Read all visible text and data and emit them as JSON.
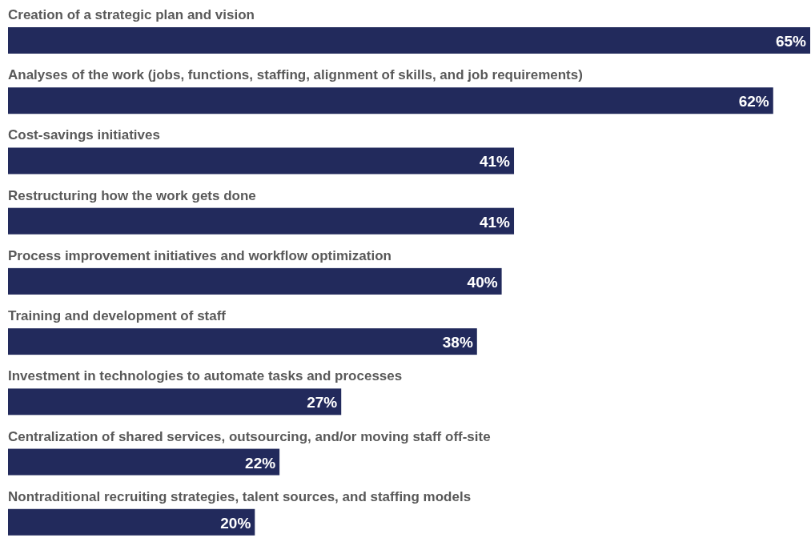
{
  "chart_data": {
    "type": "bar",
    "orientation": "horizontal",
    "color": "#222a5c",
    "categories": [
      "Creation of a strategic plan and vision",
      "Analyses of the work (jobs, functions, staffing, alignment of skills, and job requirements)",
      "Cost-savings initiatives",
      "Restructuring how the work gets done",
      "Process improvement initiatives and workflow optimization",
      "Training and development of staff",
      "Investment in technologies to automate tasks and processes",
      "Centralization of shared services, outsourcing, and/or moving staff off-site",
      "Nontraditional recruiting strategies, talent sources, and staffing models"
    ],
    "values": [
      65,
      62,
      41,
      41,
      40,
      38,
      27,
      22,
      20
    ],
    "value_labels": [
      "65%",
      "62%",
      "41%",
      "41%",
      "40%",
      "38%",
      "27%",
      "22%",
      "20%"
    ]
  }
}
